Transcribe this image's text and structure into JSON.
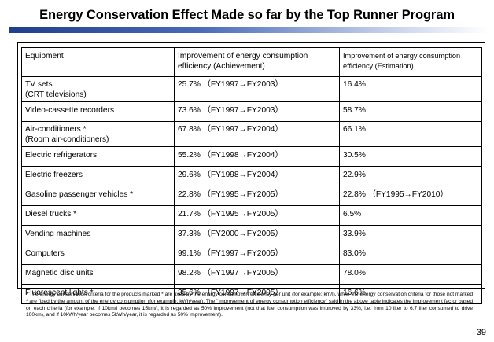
{
  "title": "Energy Conservation Effect Made so far by the Top Runner Program",
  "table": {
    "headers": [
      "Equipment",
      "Improvement of energy consumption efficiency (Achievement)",
      "Improvement of energy consumption efficiency (Estimation)"
    ],
    "rows": [
      {
        "equipment": "TV sets",
        "equipment_sub": "(CRT televisions)",
        "achievement": "25.7% （FY1997→FY2003）",
        "estimation": "16.4%"
      },
      {
        "equipment": "Video-cassette recorders",
        "equipment_sub": "",
        "achievement": "73.6% （FY1997→FY2003）",
        "estimation": "58.7%"
      },
      {
        "equipment": "Air-conditioners *",
        "equipment_sub": "(Room air-conditioners)",
        "achievement": "67.8% （FY1997→FY2004）",
        "estimation": "66.1%"
      },
      {
        "equipment": "Electric refrigerators",
        "equipment_sub": "",
        "achievement": "55.2% （FY1998→FY2004）",
        "estimation": "30.5%"
      },
      {
        "equipment": "Electric freezers",
        "equipment_sub": "",
        "achievement": "29.6% （FY1998→FY2004）",
        "estimation": "22.9%"
      },
      {
        "equipment": "Gasoline passenger vehicles *",
        "equipment_sub": "",
        "achievement": "22.8% （FY1995→FY2005）",
        "estimation": "22.8% （FY1995→FY2010）"
      },
      {
        "equipment": "Diesel trucks *",
        "equipment_sub": "",
        "achievement": "21.7% （FY1995→FY2005）",
        "estimation": "6.5%"
      },
      {
        "equipment": "Vending machines",
        "equipment_sub": "",
        "achievement": "37.3% （FY2000→FY2005）",
        "estimation": "33.9%"
      },
      {
        "equipment": "Computers",
        "equipment_sub": "",
        "achievement": "99.1% （FY1997→FY2005）",
        "estimation": "83.0%"
      },
      {
        "equipment": "Magnetic disc units",
        "equipment_sub": "",
        "achievement": "98.2% （FY1997→FY2005）",
        "estimation": "78.0%"
      },
      {
        "equipment": "Fluorescent lights *",
        "equipment_sub": "",
        "achievement": "35.6% （FY1997→FY2005）",
        "estimation": "16.6%"
      }
    ]
  },
  "footnote": "* The energy conservation criteria for the products marked * are fixed by the energy consumption efficiency per unit (for example: km/l), while the energy conservation criteria for those not marked * are fixed by the amount of the energy consumption (for example: kWh/year). The \"Improvement of energy consumption efficiency\" said in the above table indicates the improvement factor based on each criteria (for example: If 10km/l becomes 15km/l, it is regarded as 50% improvement (not that fuel consumption was improved by 33%, i.e. from 10 liter to 6.7 liter consumed to drive 100km), and if 10kWh/year becomes 5kWh/year, it is regarded as 50% improvement).",
  "page_number": "39",
  "colors": {
    "title_rule_dark": "#1f3f8c",
    "title_rule_light": "#b9c7e6"
  }
}
